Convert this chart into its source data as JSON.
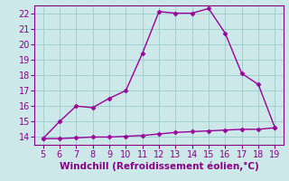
{
  "x": [
    5,
    6,
    7,
    8,
    9,
    10,
    11,
    12,
    13,
    14,
    15,
    16,
    17,
    18,
    19
  ],
  "y_upper": [
    13.9,
    15.0,
    16.0,
    15.9,
    16.5,
    17.0,
    19.4,
    22.1,
    22.0,
    22.0,
    22.3,
    20.7,
    18.1,
    17.4,
    14.6
  ],
  "y_lower": [
    13.9,
    13.9,
    13.95,
    14.0,
    14.0,
    14.05,
    14.1,
    14.2,
    14.3,
    14.35,
    14.4,
    14.45,
    14.5,
    14.5,
    14.6
  ],
  "line_color": "#990099",
  "bg_color": "#cce8e8",
  "grid_color": "#99cccc",
  "text_color": "#880088",
  "xlabel": "Windchill (Refroidissement éolien,°C)",
  "xlim": [
    4.5,
    19.5
  ],
  "ylim": [
    13.5,
    22.5
  ],
  "xticks": [
    5,
    6,
    7,
    8,
    9,
    10,
    11,
    12,
    13,
    14,
    15,
    16,
    17,
    18,
    19
  ],
  "yticks": [
    14,
    15,
    16,
    17,
    18,
    19,
    20,
    21,
    22
  ],
  "marker": "D",
  "marker_size": 2.5,
  "line_width": 1.0,
  "tick_fontsize": 7.0,
  "xlabel_fontsize": 7.5
}
